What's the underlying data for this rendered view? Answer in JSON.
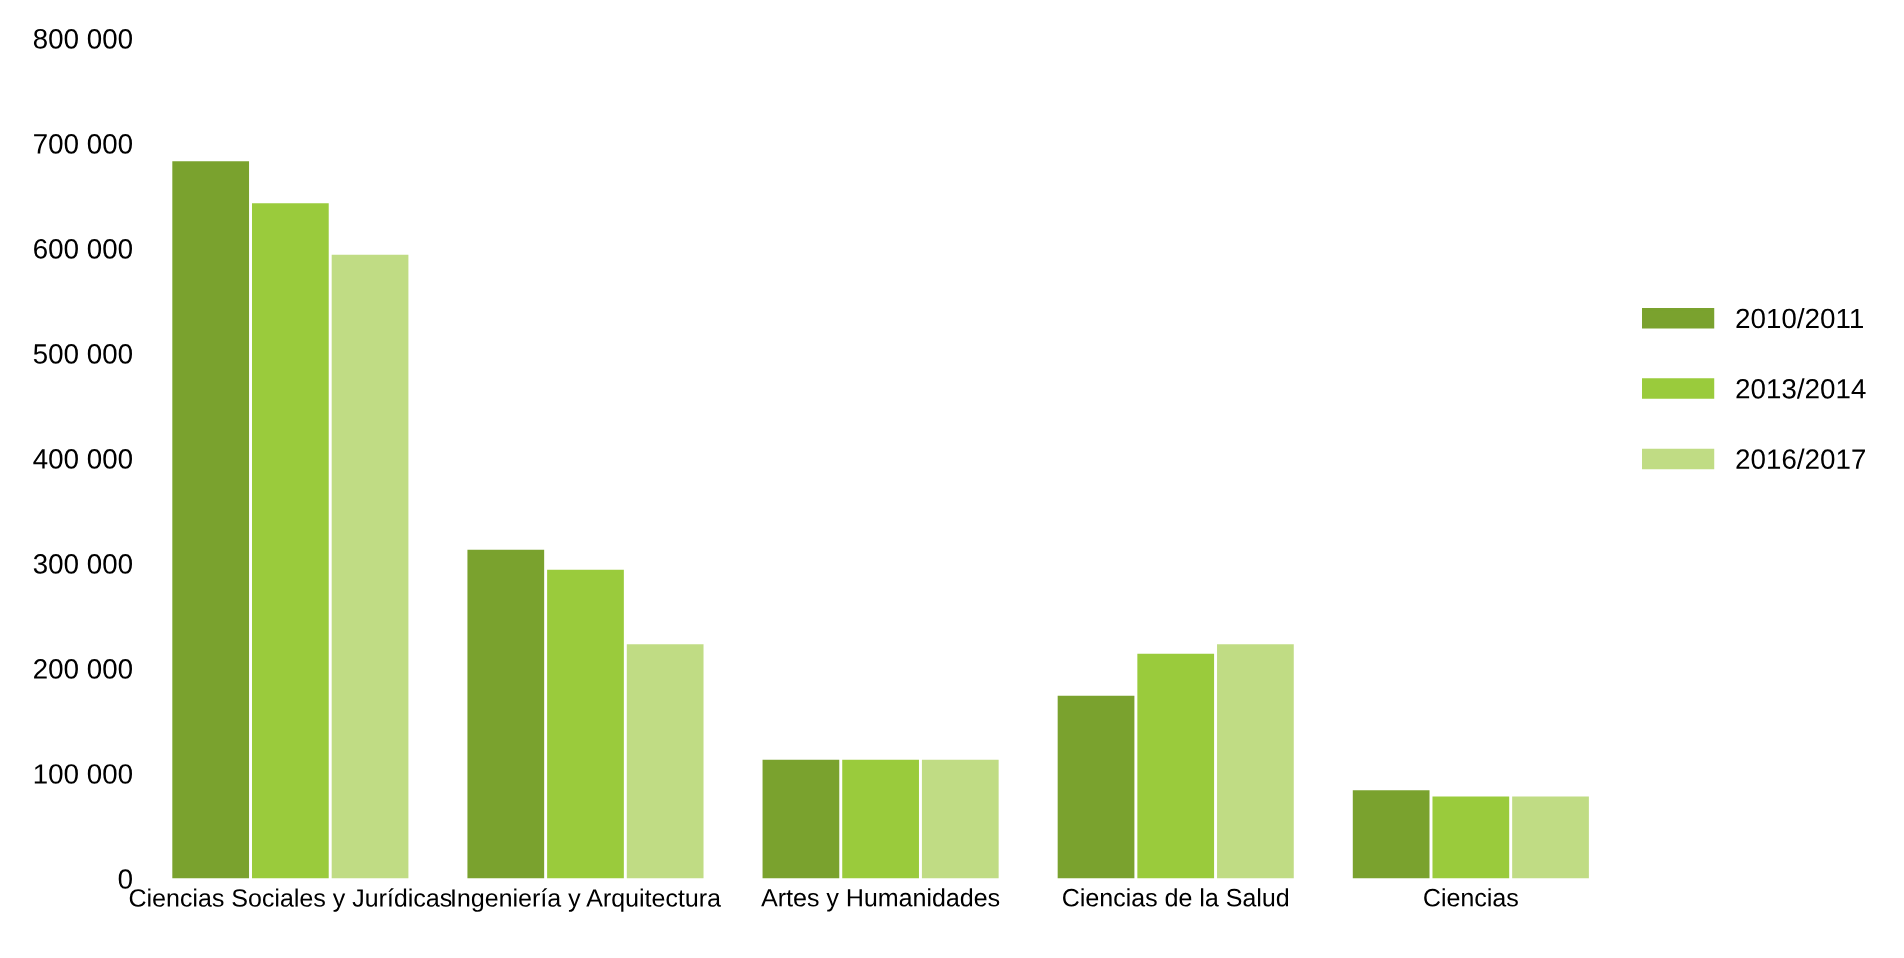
{
  "chart_data": {
    "type": "bar",
    "categories": [
      "Ciencias Sociales y Jurídicas",
      "Ingeniería y Arquitectura",
      "Artes y Humanidades",
      "Ciencias de la Salud",
      "Ciencias"
    ],
    "series": [
      {
        "name": "2010/2011",
        "color": "#7aa22e",
        "values": [
          683000,
          313000,
          113000,
          174000,
          84000
        ]
      },
      {
        "name": "2013/2014",
        "color": "#9acb3c",
        "values": [
          643000,
          294000,
          113000,
          214000,
          78000
        ]
      },
      {
        "name": "2016/2017",
        "color": "#c0dc84",
        "values": [
          594000,
          223000,
          113000,
          223000,
          78000
        ]
      }
    ],
    "ylim": [
      0,
      800000
    ],
    "yticks": [
      0,
      {
        "value": 100000,
        "label": "100 000"
      },
      {
        "value": 200000,
        "label": "200 000"
      },
      {
        "value": 300000,
        "label": "300 000"
      },
      {
        "value": 400000,
        "label": "400 000"
      },
      {
        "value": 500000,
        "label": "500 000"
      },
      {
        "value": 600000,
        "label": "600 000"
      },
      {
        "value": 700000,
        "label": "700 000"
      },
      {
        "value": 800000,
        "label": "800 000"
      }
    ],
    "grid": false,
    "legend": "right"
  }
}
